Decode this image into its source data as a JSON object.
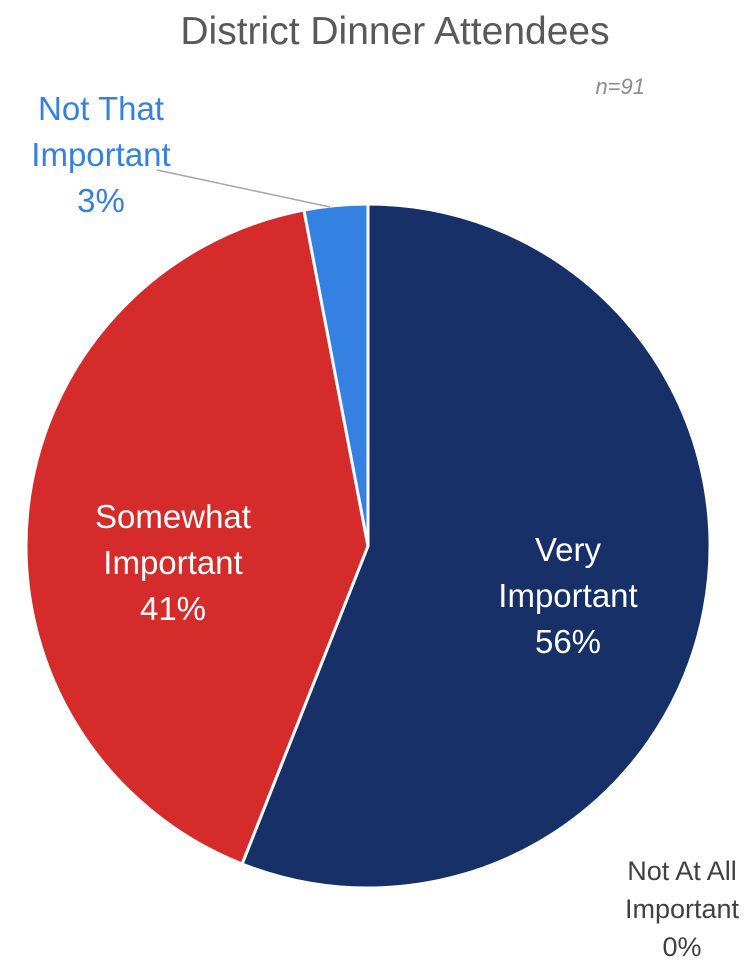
{
  "chart_data": {
    "type": "pie",
    "title": "District Dinner Attendees",
    "note": "n=91",
    "slices": [
      {
        "label_lines": [
          "Very",
          "Important"
        ],
        "percent_label": "56%",
        "value": 56,
        "color": "#173068",
        "label_color": "#ffffff"
      },
      {
        "label_lines": [
          "Not At All",
          "Important"
        ],
        "percent_label": "0%",
        "value": 0,
        "color": "#7f7f7f",
        "label_color": "#404040"
      },
      {
        "label_lines": [
          "Somewhat",
          "Important"
        ],
        "percent_label": "41%",
        "value": 41,
        "color": "#d52b2b",
        "label_color": "#ffffff"
      },
      {
        "label_lines": [
          "Not That",
          "Important"
        ],
        "percent_label": "3%",
        "value": 3,
        "color": "#3581e2",
        "label_color": "#3581e2"
      }
    ],
    "start_angle": "12 o'clock",
    "direction": "clockwise",
    "legend": "none"
  }
}
